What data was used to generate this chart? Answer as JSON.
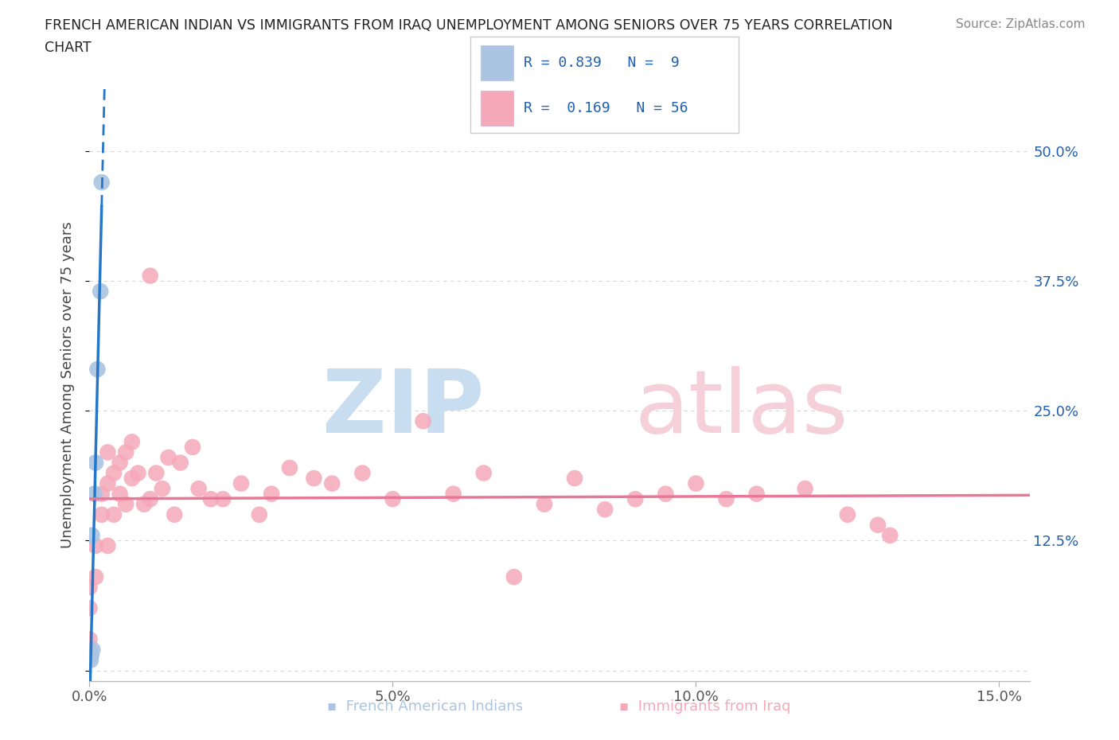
{
  "title_line1": "FRENCH AMERICAN INDIAN VS IMMIGRANTS FROM IRAQ UNEMPLOYMENT AMONG SENIORS OVER 75 YEARS CORRELATION",
  "title_line2": "CHART",
  "source": "Source: ZipAtlas.com",
  "ylabel": "Unemployment Among Seniors over 75 years",
  "xlim": [
    0.0,
    0.155
  ],
  "ylim": [
    -0.01,
    0.56
  ],
  "ytick_positions": [
    0.0,
    0.125,
    0.25,
    0.375,
    0.5
  ],
  "ytick_labels": [
    "",
    "12.5%",
    "25.0%",
    "37.5%",
    "50.0%"
  ],
  "xtick_vals": [
    0.0,
    0.05,
    0.1,
    0.15
  ],
  "xtick_labels": [
    "0.0%",
    "5.0%",
    "10.0%",
    "15.0%"
  ],
  "color_blue": "#aac4e2",
  "color_pink": "#f5a8b8",
  "line_blue": "#2676c8",
  "line_pink": "#e87898",
  "background": "#ffffff",
  "grid_color": "#d8d8d8",
  "legend_color": "#2060b0",
  "french_x": [
    0.0002,
    0.0003,
    0.0004,
    0.0005,
    0.0008,
    0.001,
    0.0013,
    0.0018,
    0.002
  ],
  "french_y": [
    0.01,
    0.015,
    0.13,
    0.02,
    0.17,
    0.2,
    0.29,
    0.365,
    0.47
  ],
  "iraq_x": [
    0.0,
    0.0,
    0.0,
    0.0,
    0.001,
    0.001,
    0.002,
    0.002,
    0.003,
    0.003,
    0.003,
    0.004,
    0.004,
    0.005,
    0.005,
    0.006,
    0.006,
    0.007,
    0.007,
    0.008,
    0.009,
    0.01,
    0.01,
    0.011,
    0.012,
    0.013,
    0.014,
    0.015,
    0.017,
    0.018,
    0.02,
    0.022,
    0.025,
    0.028,
    0.03,
    0.033,
    0.037,
    0.04,
    0.045,
    0.05,
    0.055,
    0.06,
    0.065,
    0.07,
    0.075,
    0.08,
    0.085,
    0.09,
    0.095,
    0.1,
    0.105,
    0.11,
    0.118,
    0.125,
    0.13,
    0.132
  ],
  "iraq_y": [
    0.03,
    0.06,
    0.08,
    0.02,
    0.12,
    0.09,
    0.15,
    0.17,
    0.18,
    0.12,
    0.21,
    0.15,
    0.19,
    0.2,
    0.17,
    0.21,
    0.16,
    0.185,
    0.22,
    0.19,
    0.16,
    0.38,
    0.165,
    0.19,
    0.175,
    0.205,
    0.15,
    0.2,
    0.215,
    0.175,
    0.165,
    0.165,
    0.18,
    0.15,
    0.17,
    0.195,
    0.185,
    0.18,
    0.19,
    0.165,
    0.24,
    0.17,
    0.19,
    0.09,
    0.16,
    0.185,
    0.155,
    0.165,
    0.17,
    0.18,
    0.165,
    0.17,
    0.175,
    0.15,
    0.14,
    0.13
  ],
  "zip_color_blue": "#c8ddf0",
  "zip_color_pink": "#f5d0da"
}
